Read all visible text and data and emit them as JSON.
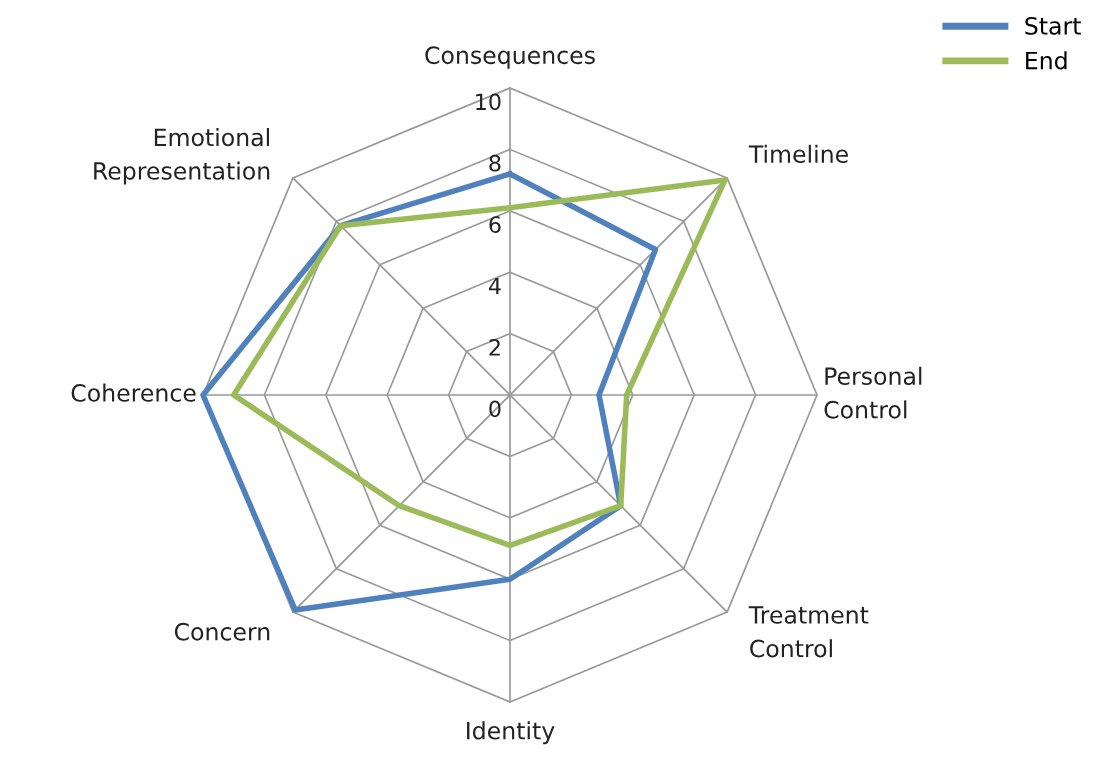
{
  "chart_data": {
    "type": "radar",
    "categories": [
      "Consequences",
      "Timeline",
      "Personal\nControl",
      "Treatment\nControl",
      "Identity",
      "Concern",
      "Coherence",
      "Emotional\nRepresentation"
    ],
    "series": [
      {
        "name": "Start",
        "color": "#4f81bd",
        "values": [
          7.2,
          6.7,
          2.9,
          5.1,
          6.0,
          9.9,
          10.0,
          7.8
        ]
      },
      {
        "name": "End",
        "color": "#9bbb59",
        "values": [
          6.1,
          9.9,
          3.8,
          5.1,
          4.9,
          5.1,
          9.0,
          7.8
        ]
      }
    ],
    "ylim": [
      0,
      10
    ],
    "yticks": [
      0,
      2,
      4,
      6,
      8,
      10
    ],
    "grid": true,
    "legend": "top right",
    "marker": "none"
  }
}
